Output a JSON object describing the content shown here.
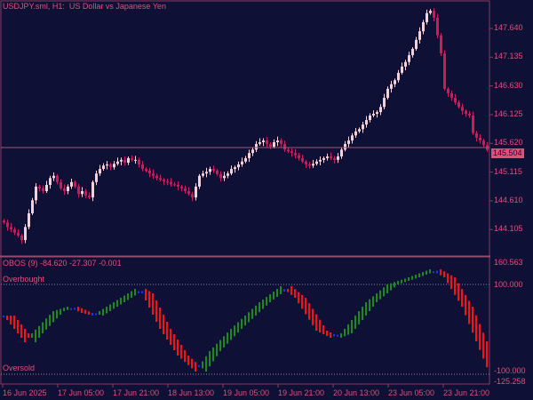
{
  "header": {
    "symbol_label": "USDJPY.sml, H1:",
    "description": "US Dollar vs Japanese Yen"
  },
  "colors": {
    "background": "#0e1035",
    "text": "#e0507a",
    "bull": "#f5d0d6",
    "bear": "#d0185a",
    "rising": "#1c8a1c",
    "falling": "#ff1010",
    "flat": "#2030ff"
  },
  "price_axis": {
    "labels": [
      "147.640",
      "147.135",
      "146.630",
      "146.125",
      "145.620",
      "145.115",
      "144.610",
      "144.105"
    ],
    "values": [
      147.64,
      147.135,
      146.63,
      146.125,
      145.62,
      145.115,
      144.61,
      144.105
    ],
    "last_price": "145.504",
    "range": [
      143.64,
      148.14
    ]
  },
  "indicator": {
    "title": "OBOS (9) -84.620 -27.307 -0.001",
    "overbought_label": "Overbought",
    "oversold_label": "Oversold",
    "axis_labels": [
      "160.563",
      "100.000",
      "-100.000",
      "-125.258"
    ],
    "axis_values": [
      160.563,
      100,
      -100,
      -125.258
    ],
    "levels": [
      100,
      -100
    ],
    "values": [
      [
        0,
        30.7
      ],
      [
        6,
        -28.7
      ],
      [
        8,
        -8.9
      ],
      [
        14,
        40.6
      ],
      [
        18,
        50.5
      ],
      [
        22,
        36.6
      ],
      [
        25,
        30.7
      ],
      [
        29,
        50.5
      ],
      [
        37,
        90.1
      ],
      [
        39,
        80.2
      ],
      [
        44,
        1.0
      ],
      [
        49,
        -58.4
      ],
      [
        54,
        -94.1
      ],
      [
        58,
        -48.5
      ],
      [
        64,
        1.0
      ],
      [
        72,
        60.4
      ],
      [
        78,
        96.0
      ],
      [
        82,
        70.3
      ],
      [
        88,
        -3.0
      ],
      [
        92,
        -18.8
      ],
      [
        95,
        -8.9
      ],
      [
        102,
        60.4
      ],
      [
        108,
        100
      ],
      [
        114,
        115.8
      ],
      [
        120,
        133.7
      ],
      [
        124,
        115.8
      ],
      [
        129,
        50.5
      ],
      [
        136,
        -84.62
      ]
    ]
  },
  "time_axis": {
    "labels": [
      "16 Jun 2025",
      "17 Jun 05:00",
      "17 Jun 21:00",
      "18 Jun 13:00",
      "19 Jun 05:00",
      "19 Jun 21:00",
      "20 Jun 13:00",
      "23 Jun 05:00",
      "23 Jun 21:00"
    ]
  },
  "chart_data": {
    "type": "candlestick",
    "series_name": "USDJPY.sml",
    "closes": [
      144.23,
      144.15,
      144.11,
      144.05,
      144.0,
      143.92,
      144.15,
      144.39,
      144.62,
      144.86,
      144.83,
      144.78,
      144.89,
      145.01,
      145.05,
      144.94,
      144.83,
      144.78,
      144.86,
      144.94,
      144.86,
      144.73,
      144.78,
      144.7,
      144.67,
      144.94,
      145.09,
      145.17,
      145.23,
      145.25,
      145.2,
      145.26,
      145.3,
      145.33,
      145.28,
      145.36,
      145.33,
      145.33,
      145.25,
      145.17,
      145.14,
      145.09,
      145.05,
      145.01,
      144.98,
      144.95,
      144.94,
      144.9,
      144.89,
      144.86,
      144.83,
      144.78,
      144.73,
      144.67,
      144.86,
      145.05,
      145.09,
      145.12,
      145.17,
      145.14,
      145.08,
      145.01,
      145.05,
      145.09,
      145.17,
      145.2,
      145.25,
      145.3,
      145.36,
      145.45,
      145.51,
      145.61,
      145.64,
      145.67,
      145.61,
      145.56,
      145.64,
      145.67,
      145.61,
      145.51,
      145.48,
      145.45,
      145.41,
      145.36,
      145.3,
      145.25,
      145.23,
      145.26,
      145.3,
      145.33,
      145.36,
      145.39,
      145.36,
      145.33,
      145.39,
      145.51,
      145.61,
      145.67,
      145.76,
      145.83,
      145.87,
      145.95,
      146.03,
      146.11,
      146.14,
      146.17,
      146.26,
      146.42,
      146.58,
      146.66,
      146.73,
      146.86,
      146.97,
      147.05,
      147.17,
      147.28,
      147.44,
      147.59,
      147.75,
      147.91,
      147.95,
      147.83,
      147.52,
      147.2,
      146.58,
      146.5,
      146.42,
      146.34,
      146.26,
      146.19,
      146.14,
      146.11,
      145.8,
      145.72,
      145.67,
      145.59,
      145.504
    ]
  }
}
